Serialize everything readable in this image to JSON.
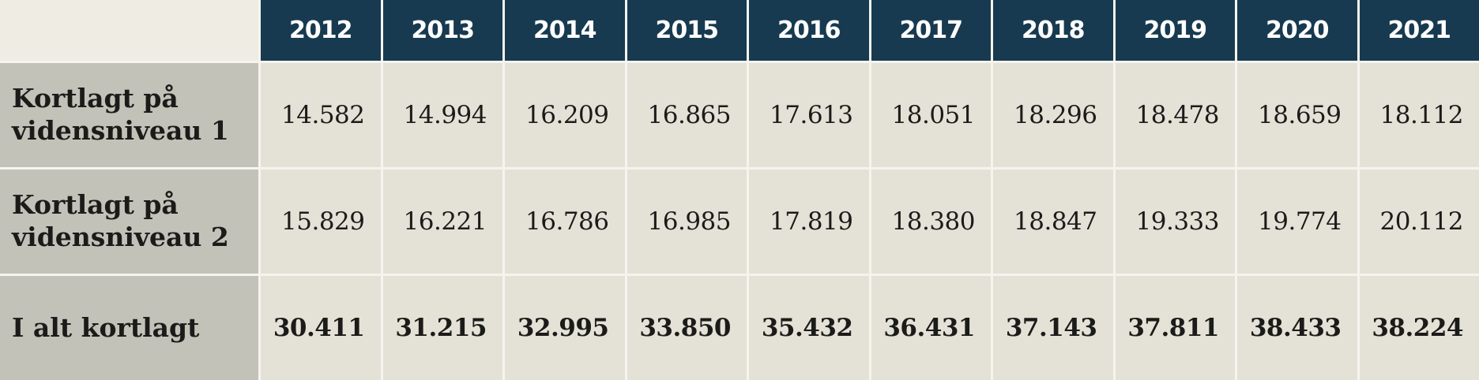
{
  "colors": {
    "header_bg": "#173A50",
    "header_text": "#FFFFFF",
    "corner_bg": "#EFECE3",
    "label_bg": "#C2C2B9",
    "cell_bg": "#E4E1D7",
    "gap": "#F6F4EE",
    "text": "#1B1B19"
  },
  "table": {
    "years": [
      "2012",
      "2013",
      "2014",
      "2015",
      "2016",
      "2017",
      "2018",
      "2019",
      "2020",
      "2021"
    ],
    "rows": [
      {
        "label": "Kortlagt på vidensniveau 1",
        "values": [
          "14.582",
          "14.994",
          "16.209",
          "16.865",
          "17.613",
          "18.051",
          "18.296",
          "18.478",
          "18.659",
          "18.112"
        ]
      },
      {
        "label": "Kortlagt på vidensniveau 2",
        "values": [
          "15.829",
          "16.221",
          "16.786",
          "16.985",
          "17.819",
          "18.380",
          "18.847",
          "19.333",
          "19.774",
          "20.112"
        ]
      },
      {
        "label": "I alt kortlagt",
        "values": [
          "30.411",
          "31.215",
          "32.995",
          "33.850",
          "35.432",
          "36.431",
          "37.143",
          "37.811",
          "38.433",
          "38.224"
        ]
      }
    ]
  },
  "chart_data": {
    "type": "table",
    "categories": [
      2012,
      2013,
      2014,
      2015,
      2016,
      2017,
      2018,
      2019,
      2020,
      2021
    ],
    "series": [
      {
        "name": "Kortlagt på vidensniveau 1",
        "values": [
          14582,
          14994,
          16209,
          16865,
          17613,
          18051,
          18296,
          18478,
          18659,
          18112
        ]
      },
      {
        "name": "Kortlagt på vidensniveau 2",
        "values": [
          15829,
          16221,
          16786,
          16985,
          17819,
          18380,
          18847,
          19333,
          19774,
          20112
        ]
      },
      {
        "name": "I alt kortlagt",
        "values": [
          30411,
          31215,
          32995,
          33850,
          35432,
          36431,
          37143,
          37811,
          38433,
          38224
        ]
      }
    ],
    "title": "",
    "number_format": "da-DK thousands separator"
  }
}
